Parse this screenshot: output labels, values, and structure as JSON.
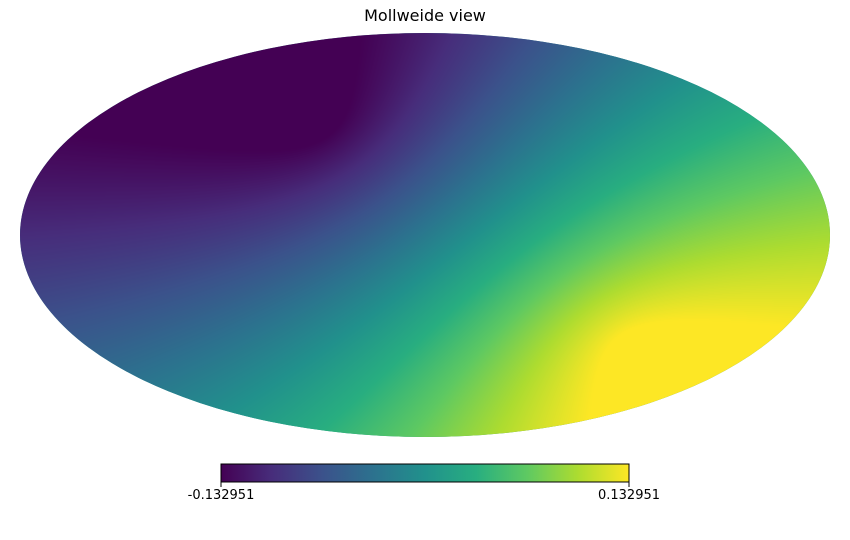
{
  "chart_data": {
    "type": "heatmap",
    "projection": "mollweide",
    "title": "Mollweide view",
    "colormap": "viridis",
    "colorbar": {
      "min": -0.132951,
      "max": 0.132951,
      "orientation": "horizontal",
      "placement": "bottom",
      "tick_labels": [
        "-0.132951",
        "0.132951"
      ]
    },
    "field": {
      "description": "smooth dipole-like map",
      "min_location": "upper-left",
      "max_location": "lower-right"
    }
  }
}
